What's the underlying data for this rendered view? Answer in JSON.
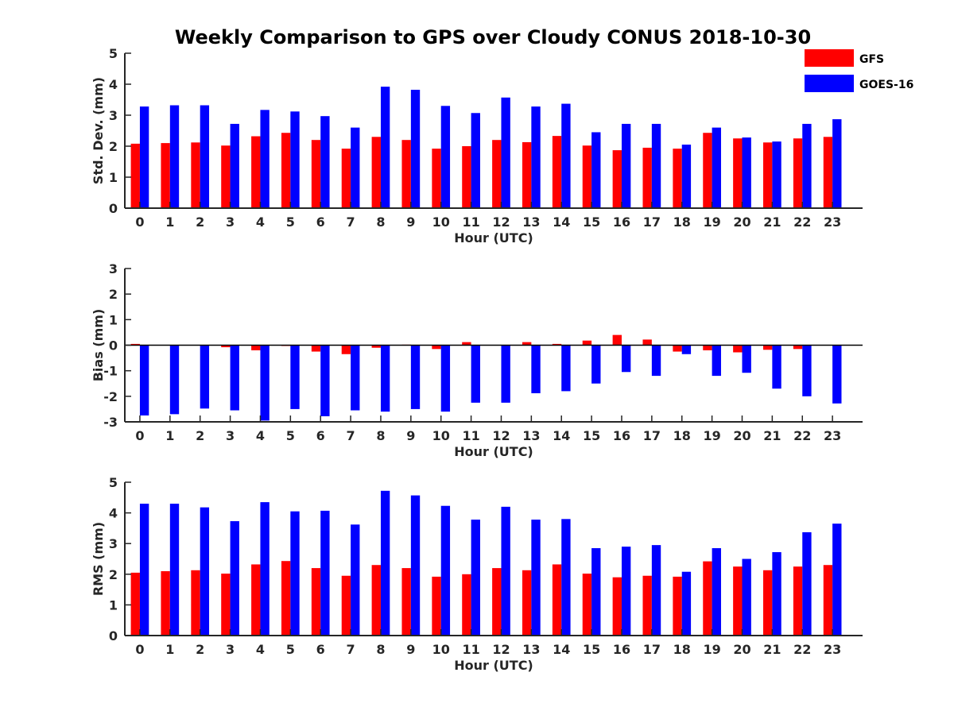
{
  "title": "Weekly Comparison to GPS over Cloudy CONUS 2018-10-30",
  "legend": {
    "placement": "top-right",
    "entries": [
      {
        "name": "GFS",
        "color": "#ff0000"
      },
      {
        "name": "GOES-16",
        "color": "#0000ff"
      }
    ]
  },
  "chart_data": [
    {
      "type": "bar",
      "xlabel": "Hour (UTC)",
      "ylabel": "Std. Dev. (mm)",
      "ylim": [
        0,
        5
      ],
      "yticks": [
        0,
        1,
        2,
        3,
        4,
        5
      ],
      "categories": [
        "0",
        "1",
        "2",
        "3",
        "4",
        "5",
        "6",
        "7",
        "8",
        "9",
        "10",
        "11",
        "12",
        "13",
        "14",
        "15",
        "16",
        "17",
        "18",
        "19",
        "20",
        "21",
        "22",
        "23"
      ],
      "series": [
        {
          "name": "GFS",
          "color": "#ff0000",
          "values": [
            2.08,
            2.1,
            2.12,
            2.02,
            2.32,
            2.43,
            2.2,
            1.92,
            2.3,
            2.2,
            1.92,
            2.0,
            2.2,
            2.13,
            2.33,
            2.02,
            1.87,
            1.95,
            1.92,
            2.43,
            2.25,
            2.12,
            2.25,
            2.3
          ]
        },
        {
          "name": "GOES-16",
          "color": "#0000ff",
          "values": [
            3.28,
            3.32,
            3.32,
            2.72,
            3.17,
            3.12,
            2.97,
            2.6,
            3.92,
            3.82,
            3.3,
            3.07,
            3.57,
            3.28,
            3.37,
            2.45,
            2.72,
            2.72,
            2.05,
            2.6,
            2.28,
            2.15,
            2.72,
            2.87
          ]
        }
      ]
    },
    {
      "type": "bar",
      "xlabel": "Hour (UTC)",
      "ylabel": "Bias (mm)",
      "ylim": [
        -3,
        3
      ],
      "yticks": [
        -3,
        -2,
        -1,
        0,
        1,
        2,
        3
      ],
      "categories": [
        "0",
        "1",
        "2",
        "3",
        "4",
        "5",
        "6",
        "7",
        "8",
        "9",
        "10",
        "11",
        "12",
        "13",
        "14",
        "15",
        "16",
        "17",
        "18",
        "19",
        "20",
        "21",
        "22",
        "23"
      ],
      "series": [
        {
          "name": "GFS",
          "color": "#ff0000",
          "values": [
            0.05,
            0.0,
            0.0,
            -0.08,
            -0.2,
            -0.03,
            -0.25,
            -0.35,
            -0.1,
            0.02,
            -0.15,
            0.12,
            0.0,
            0.12,
            0.05,
            0.18,
            0.4,
            0.22,
            -0.25,
            -0.2,
            -0.28,
            -0.18,
            -0.15,
            0.0
          ]
        },
        {
          "name": "GOES-16",
          "color": "#0000ff",
          "values": [
            -2.75,
            -2.7,
            -2.48,
            -2.55,
            -2.95,
            -2.5,
            -2.78,
            -2.55,
            -2.6,
            -2.5,
            -2.6,
            -2.25,
            -2.25,
            -1.88,
            -1.8,
            -1.5,
            -1.05,
            -1.2,
            -0.35,
            -1.2,
            -1.08,
            -1.7,
            -2.0,
            -2.28
          ]
        }
      ]
    },
    {
      "type": "bar",
      "xlabel": "Hour (UTC)",
      "ylabel": "RMS (mm)",
      "ylim": [
        0,
        5
      ],
      "yticks": [
        0,
        1,
        2,
        3,
        4,
        5
      ],
      "categories": [
        "0",
        "1",
        "2",
        "3",
        "4",
        "5",
        "6",
        "7",
        "8",
        "9",
        "10",
        "11",
        "12",
        "13",
        "14",
        "15",
        "16",
        "17",
        "18",
        "19",
        "20",
        "21",
        "22",
        "23"
      ],
      "series": [
        {
          "name": "GFS",
          "color": "#ff0000",
          "values": [
            2.05,
            2.1,
            2.13,
            2.02,
            2.32,
            2.43,
            2.2,
            1.95,
            2.3,
            2.2,
            1.92,
            2.0,
            2.2,
            2.13,
            2.32,
            2.02,
            1.9,
            1.95,
            1.92,
            2.42,
            2.25,
            2.13,
            2.25,
            2.3
          ]
        },
        {
          "name": "GOES-16",
          "color": "#0000ff",
          "values": [
            4.3,
            4.3,
            4.18,
            3.73,
            4.35,
            4.05,
            4.07,
            3.62,
            4.72,
            4.57,
            4.23,
            3.78,
            4.2,
            3.78,
            3.8,
            2.85,
            2.9,
            2.95,
            2.08,
            2.85,
            2.5,
            2.72,
            3.37,
            3.65
          ]
        }
      ]
    }
  ]
}
